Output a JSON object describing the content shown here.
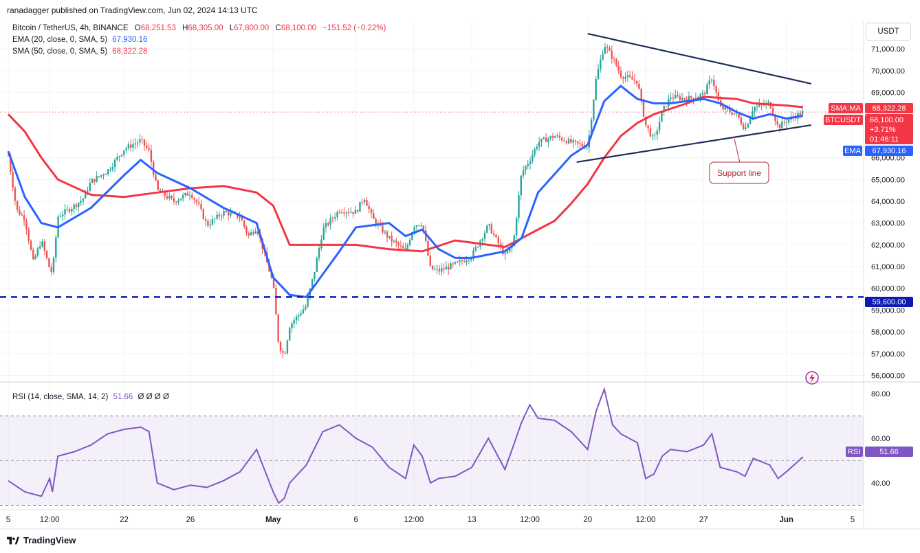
{
  "header": {
    "publisher_line": "ranadagger published on TradingView.com, Jun 02, 2024 14:13 UTC"
  },
  "legend": {
    "symbol": "Bitcoin / TetherUS, 4h, BINANCE",
    "open_label": "O",
    "open": "68,251.53",
    "high_label": "H",
    "high": "68,305.00",
    "low_label": "L",
    "low": "67,800.00",
    "close_label": "C",
    "close": "68,100.00",
    "change": "−151.52 (−0.22%)",
    "ema_label": "EMA (20, close, 0, SMA, 5)",
    "ema_value": "67,930.16",
    "sma_label": "SMA (50, close, 0, SMA, 5)",
    "sma_value": "68,322.28",
    "rsi_label": "RSI (14, close, SMA, 14, 2)",
    "rsi_value": "51.66",
    "rsi_extra": "Ø Ø Ø Ø"
  },
  "currency_button": "USDT",
  "annotation": "Support line",
  "price_tags": {
    "sma_name": "SMA:MA",
    "sma_price": "68,322.28",
    "symbol_name": "BTCUSDT",
    "last_price": "68,100.00",
    "last_change": "+3.71%",
    "countdown": "01:46:11",
    "ema_name": "EMA",
    "ema_price": "67,930.16",
    "level_price": "59,600.00",
    "rsi_name": "RSI",
    "rsi_price": "51.66"
  },
  "footer": {
    "brand": "TradingView"
  },
  "colors": {
    "up": "#26a69a",
    "down": "#ef5350",
    "ema": "#2962ff",
    "sma": "#f23645",
    "rsi": "#7e57c2",
    "trendline": "#1f2d5a",
    "level": "#0d1bb0",
    "callout_border": "#b22833"
  },
  "chart_data": {
    "type": "candlestick",
    "symbol": "BTCUSDT",
    "timeframe": "4h",
    "y_axis_ticks": [
      56000,
      57000,
      58000,
      59000,
      60000,
      61000,
      62000,
      63000,
      64000,
      65000,
      66000,
      69000,
      70000,
      71000
    ],
    "y_axis_labels": [
      "56,000.00",
      "57,000.00",
      "58,000.00",
      "59,000.00",
      "60,000.00",
      "61,000.00",
      "62,000.00",
      "63,000.00",
      "64,000.00",
      "65,000.00",
      "66,000.00",
      "69,000.00",
      "70,000.00",
      "71,000.00"
    ],
    "x_axis_labels": [
      "5",
      "12:00",
      "22",
      "26",
      "May",
      "6",
      "12:00",
      "13",
      "12:00",
      "20",
      "12:00",
      "27",
      "Jun",
      "5"
    ],
    "x_axis_ticks": [
      "Apr 15",
      "Apr 17 12:00",
      "Apr 22",
      "Apr 26",
      "May 1",
      "May 6",
      "May 9 12:00",
      "May 13",
      "May 16 12:00",
      "May 20",
      "May 23 12:00",
      "May 27",
      "Jun 1",
      "Jun 5"
    ],
    "ylim": [
      55700,
      72300
    ],
    "horizontal_level": 59600,
    "price_path": [
      [
        "Apr 15",
        66100
      ],
      [
        "Apr 15 12:00",
        63600
      ],
      [
        "Apr 16",
        63200
      ],
      [
        "Apr 16 12:00",
        61200
      ],
      [
        "Apr 17",
        62200
      ],
      [
        "Apr 17 12:00",
        60900
      ],
      [
        "Apr 17 16:00",
        60700
      ],
      [
        "Apr 18",
        63300
      ],
      [
        "Apr 19",
        63800
      ],
      [
        "Apr 19 12:00",
        64100
      ],
      [
        "Apr 20",
        64900
      ],
      [
        "Apr 21",
        65400
      ],
      [
        "Apr 22",
        66400
      ],
      [
        "Apr 23",
        66800
      ],
      [
        "Apr 23 12:00",
        66300
      ],
      [
        "Apr 24",
        64500
      ],
      [
        "Apr 25",
        64000
      ],
      [
        "Apr 26",
        64400
      ],
      [
        "Apr 26 12:00",
        63800
      ],
      [
        "Apr 27",
        62900
      ],
      [
        "Apr 28",
        63500
      ],
      [
        "Apr 29",
        63300
      ],
      [
        "Apr 29 12:00",
        62400
      ],
      [
        "Apr 30",
        62800
      ],
      [
        "May 1",
        60200
      ],
      [
        "May 1 08:00",
        57400
      ],
      [
        "May 1 16:00",
        56900
      ],
      [
        "May 2",
        58300
      ],
      [
        "May 3",
        59200
      ],
      [
        "May 3 12:00",
        60800
      ],
      [
        "May 4",
        62700
      ],
      [
        "May 5",
        63600
      ],
      [
        "May 6",
        63500
      ],
      [
        "May 6 12:00",
        64200
      ],
      [
        "May 7",
        63200
      ],
      [
        "May 8",
        62300
      ],
      [
        "May 9",
        61700
      ],
      [
        "May 9 12:00",
        62900
      ],
      [
        "May 10",
        63000
      ],
      [
        "May 10 12:00",
        60900
      ],
      [
        "May 11",
        60800
      ],
      [
        "May 12",
        61100
      ],
      [
        "May 13",
        61500
      ],
      [
        "May 14",
        62900
      ],
      [
        "May 15",
        61500
      ],
      [
        "May 15 12:00",
        62000
      ],
      [
        "May 16",
        65300
      ],
      [
        "May 16 12:00",
        65900
      ],
      [
        "May 17",
        66700
      ],
      [
        "May 18",
        67000
      ],
      [
        "May 19",
        66700
      ],
      [
        "May 20",
        66500
      ],
      [
        "May 20 12:00",
        69600
      ],
      [
        "May 21",
        71200
      ],
      [
        "May 21 12:00",
        70600
      ],
      [
        "May 22",
        69800
      ],
      [
        "May 23",
        69500
      ],
      [
        "May 23 12:00",
        67500
      ],
      [
        "May 24",
        66800
      ],
      [
        "May 24 12:00",
        68100
      ],
      [
        "May 25",
        68800
      ],
      [
        "May 26",
        68700
      ],
      [
        "May 27",
        68900
      ],
      [
        "May 27 12:00",
        69700
      ],
      [
        "May 28",
        68300
      ],
      [
        "May 29",
        68000
      ],
      [
        "May 29 12:00",
        67300
      ],
      [
        "May 30",
        68300
      ],
      [
        "May 31",
        68500
      ],
      [
        "May 31 12:00",
        67400
      ],
      [
        "Jun 1",
        67700
      ],
      [
        "Jun 2",
        68100
      ]
    ],
    "indicators": {
      "ema20_path": [
        [
          "Apr 15",
          66300
        ],
        [
          "Apr 16",
          64200
        ],
        [
          "Apr 17",
          63000
        ],
        [
          "Apr 18",
          62800
        ],
        [
          "Apr 20",
          63700
        ],
        [
          "Apr 22",
          65200
        ],
        [
          "Apr 23",
          65900
        ],
        [
          "Apr 24",
          65300
        ],
        [
          "Apr 26",
          64600
        ],
        [
          "Apr 28",
          63700
        ],
        [
          "Apr 30",
          63000
        ],
        [
          "May 1",
          60500
        ],
        [
          "May 2",
          59700
        ],
        [
          "May 3",
          59600
        ],
        [
          "May 5",
          61700
        ],
        [
          "May 6",
          62800
        ],
        [
          "May 8",
          63000
        ],
        [
          "May 9",
          62400
        ],
        [
          "May 10",
          62700
        ],
        [
          "May 11",
          61800
        ],
        [
          "May 12",
          61400
        ],
        [
          "May 13",
          61400
        ],
        [
          "May 15",
          61700
        ],
        [
          "May 16",
          62300
        ],
        [
          "May 17",
          64400
        ],
        [
          "May 19",
          66100
        ],
        [
          "May 20",
          66600
        ],
        [
          "May 21",
          68600
        ],
        [
          "May 22",
          69300
        ],
        [
          "May 23",
          68700
        ],
        [
          "May 24",
          68500
        ],
        [
          "May 25",
          68500
        ],
        [
          "May 27",
          68700
        ],
        [
          "May 28",
          68500
        ],
        [
          "May 29",
          68100
        ],
        [
          "May 30",
          67800
        ],
        [
          "May 31",
          68000
        ],
        [
          "Jun 1",
          67800
        ],
        [
          "Jun 2",
          67930
        ]
      ],
      "sma50_path": [
        [
          "Apr 15",
          68000
        ],
        [
          "Apr 16",
          67200
        ],
        [
          "Apr 17",
          66000
        ],
        [
          "Apr 18",
          65000
        ],
        [
          "Apr 20",
          64300
        ],
        [
          "Apr 22",
          64200
        ],
        [
          "Apr 24",
          64400
        ],
        [
          "Apr 26",
          64600
        ],
        [
          "Apr 28",
          64700
        ],
        [
          "Apr 30",
          64400
        ],
        [
          "May 1",
          63800
        ],
        [
          "May 2",
          62000
        ],
        [
          "May 4",
          62000
        ],
        [
          "May 6",
          62000
        ],
        [
          "May 8",
          61800
        ],
        [
          "May 10",
          61700
        ],
        [
          "May 12",
          62200
        ],
        [
          "May 14",
          62000
        ],
        [
          "May 15",
          61900
        ],
        [
          "May 16",
          62300
        ],
        [
          "May 18",
          63100
        ],
        [
          "May 19",
          63900
        ],
        [
          "May 20",
          64800
        ],
        [
          "May 21",
          66000
        ],
        [
          "May 22",
          67000
        ],
        [
          "May 23",
          67600
        ],
        [
          "May 24",
          68000
        ],
        [
          "May 26",
          68500
        ],
        [
          "May 27",
          68800
        ],
        [
          "May 29",
          68700
        ],
        [
          "May 30",
          68500
        ],
        [
          "Jun 1",
          68400
        ],
        [
          "Jun 2",
          68322
        ]
      ],
      "rsi": {
        "ylim": [
          28,
          84
        ],
        "y_axis_ticks": [
          40,
          60,
          80
        ],
        "y_axis_labels": [
          "40.00",
          "60.00",
          "80.00"
        ],
        "upper_band": 70,
        "middle_band": 50,
        "lower_band": 30,
        "path": [
          [
            "Apr 15",
            41
          ],
          [
            "Apr 16",
            36
          ],
          [
            "Apr 17",
            34
          ],
          [
            "Apr 17 12:00",
            42
          ],
          [
            "Apr 17 16:00",
            36
          ],
          [
            "Apr 18",
            52
          ],
          [
            "Apr 19",
            54
          ],
          [
            "Apr 20",
            57
          ],
          [
            "Apr 21",
            62
          ],
          [
            "Apr 22",
            64
          ],
          [
            "Apr 23",
            65
          ],
          [
            "Apr 23 12:00",
            63
          ],
          [
            "Apr 24",
            40
          ],
          [
            "Apr 25",
            37
          ],
          [
            "Apr 26",
            39
          ],
          [
            "Apr 27",
            38
          ],
          [
            "Apr 28",
            41
          ],
          [
            "Apr 29",
            45
          ],
          [
            "Apr 30",
            55
          ],
          [
            "May 1",
            36
          ],
          [
            "May 1 08:00",
            31
          ],
          [
            "May 1 16:00",
            33
          ],
          [
            "May 2",
            40
          ],
          [
            "May 3",
            48
          ],
          [
            "May 4",
            63
          ],
          [
            "May 5",
            66
          ],
          [
            "May 6",
            60
          ],
          [
            "May 7",
            56
          ],
          [
            "May 8",
            47
          ],
          [
            "May 9",
            42
          ],
          [
            "May 9 12:00",
            57
          ],
          [
            "May 10",
            52
          ],
          [
            "May 10 12:00",
            40
          ],
          [
            "May 11",
            42
          ],
          [
            "May 12",
            43
          ],
          [
            "May 13",
            47
          ],
          [
            "May 14",
            60
          ],
          [
            "May 15",
            46
          ],
          [
            "May 16",
            67
          ],
          [
            "May 16 12:00",
            75
          ],
          [
            "May 17",
            69
          ],
          [
            "May 18",
            68
          ],
          [
            "May 19",
            63
          ],
          [
            "May 20",
            55
          ],
          [
            "May 20 12:00",
            72
          ],
          [
            "May 21",
            82
          ],
          [
            "May 21 12:00",
            66
          ],
          [
            "May 22",
            62
          ],
          [
            "May 23",
            58
          ],
          [
            "May 23 12:00",
            42
          ],
          [
            "May 24",
            44
          ],
          [
            "May 24 12:00",
            52
          ],
          [
            "May 25",
            55
          ],
          [
            "May 26",
            54
          ],
          [
            "May 27",
            57
          ],
          [
            "May 27 12:00",
            62
          ],
          [
            "May 28",
            47
          ],
          [
            "May 29",
            45
          ],
          [
            "May 29 12:00",
            43
          ],
          [
            "May 30",
            51
          ],
          [
            "May 31",
            48
          ],
          [
            "May 31 12:00",
            42
          ],
          [
            "Jun 1",
            45
          ],
          [
            "Jun 2",
            51.66
          ]
        ]
      }
    },
    "trendlines": [
      {
        "name": "resistance",
        "from": [
          "May 20",
          71700
        ],
        "to": [
          "Jun 2",
          69400
        ]
      },
      {
        "name": "support",
        "from": [
          "May 19 08:00",
          65800
        ],
        "to": [
          "Jun 2",
          67500
        ]
      }
    ]
  }
}
